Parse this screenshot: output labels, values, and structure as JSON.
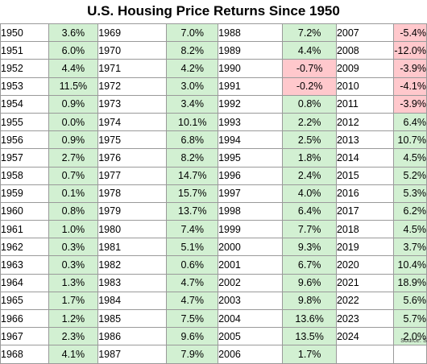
{
  "title": "U.S. Housing Price Returns Since 1950",
  "source": "Source: S",
  "colors": {
    "positive_fill": "#d2f0d2",
    "negative_fill": "#ffc8cc",
    "border": "#9a9a9a"
  },
  "columns": [
    [
      [
        "1950",
        "3.6%"
      ],
      [
        "1951",
        "6.0%"
      ],
      [
        "1952",
        "4.4%"
      ],
      [
        "1953",
        "11.5%"
      ],
      [
        "1954",
        "0.9%"
      ],
      [
        "1955",
        "0.0%"
      ],
      [
        "1956",
        "0.9%"
      ],
      [
        "1957",
        "2.7%"
      ],
      [
        "1958",
        "0.7%"
      ],
      [
        "1959",
        "0.1%"
      ],
      [
        "1960",
        "0.8%"
      ],
      [
        "1961",
        "1.0%"
      ],
      [
        "1962",
        "0.3%"
      ],
      [
        "1963",
        "0.3%"
      ],
      [
        "1964",
        "1.3%"
      ],
      [
        "1965",
        "1.7%"
      ],
      [
        "1966",
        "1.2%"
      ],
      [
        "1967",
        "2.3%"
      ],
      [
        "1968",
        "4.1%"
      ]
    ],
    [
      [
        "1969",
        "7.0%"
      ],
      [
        "1970",
        "8.2%"
      ],
      [
        "1971",
        "4.2%"
      ],
      [
        "1972",
        "3.0%"
      ],
      [
        "1973",
        "3.4%"
      ],
      [
        "1974",
        "10.1%"
      ],
      [
        "1975",
        "6.8%"
      ],
      [
        "1976",
        "8.2%"
      ],
      [
        "1977",
        "14.7%"
      ],
      [
        "1978",
        "15.7%"
      ],
      [
        "1979",
        "13.7%"
      ],
      [
        "1980",
        "7.4%"
      ],
      [
        "1981",
        "5.1%"
      ],
      [
        "1982",
        "0.6%"
      ],
      [
        "1983",
        "4.7%"
      ],
      [
        "1984",
        "4.7%"
      ],
      [
        "1985",
        "7.5%"
      ],
      [
        "1986",
        "9.6%"
      ],
      [
        "1987",
        "7.9%"
      ]
    ],
    [
      [
        "1988",
        "7.2%"
      ],
      [
        "1989",
        "4.4%"
      ],
      [
        "1990",
        "-0.7%"
      ],
      [
        "1991",
        "-0.2%"
      ],
      [
        "1992",
        "0.8%"
      ],
      [
        "1993",
        "2.2%"
      ],
      [
        "1994",
        "2.5%"
      ],
      [
        "1995",
        "1.8%"
      ],
      [
        "1996",
        "2.4%"
      ],
      [
        "1997",
        "4.0%"
      ],
      [
        "1998",
        "6.4%"
      ],
      [
        "1999",
        "7.7%"
      ],
      [
        "2000",
        "9.3%"
      ],
      [
        "2001",
        "6.7%"
      ],
      [
        "2002",
        "9.6%"
      ],
      [
        "2003",
        "9.8%"
      ],
      [
        "2004",
        "13.6%"
      ],
      [
        "2005",
        "13.5%"
      ],
      [
        "2006",
        "1.7%"
      ]
    ],
    [
      [
        "2007",
        "-5.4%"
      ],
      [
        "2008",
        "-12.0%"
      ],
      [
        "2009",
        "-3.9%"
      ],
      [
        "2010",
        "-4.1%"
      ],
      [
        "2011",
        "-3.9%"
      ],
      [
        "2012",
        "6.4%"
      ],
      [
        "2013",
        "10.7%"
      ],
      [
        "2014",
        "4.5%"
      ],
      [
        "2015",
        "5.2%"
      ],
      [
        "2016",
        "5.3%"
      ],
      [
        "2017",
        "6.2%"
      ],
      [
        "2018",
        "4.5%"
      ],
      [
        "2019",
        "3.7%"
      ],
      [
        "2020",
        "10.4%"
      ],
      [
        "2021",
        "18.9%"
      ],
      [
        "2022",
        "5.6%"
      ],
      [
        "2023",
        "5.7%"
      ],
      [
        "2024",
        "2.0%"
      ]
    ]
  ]
}
